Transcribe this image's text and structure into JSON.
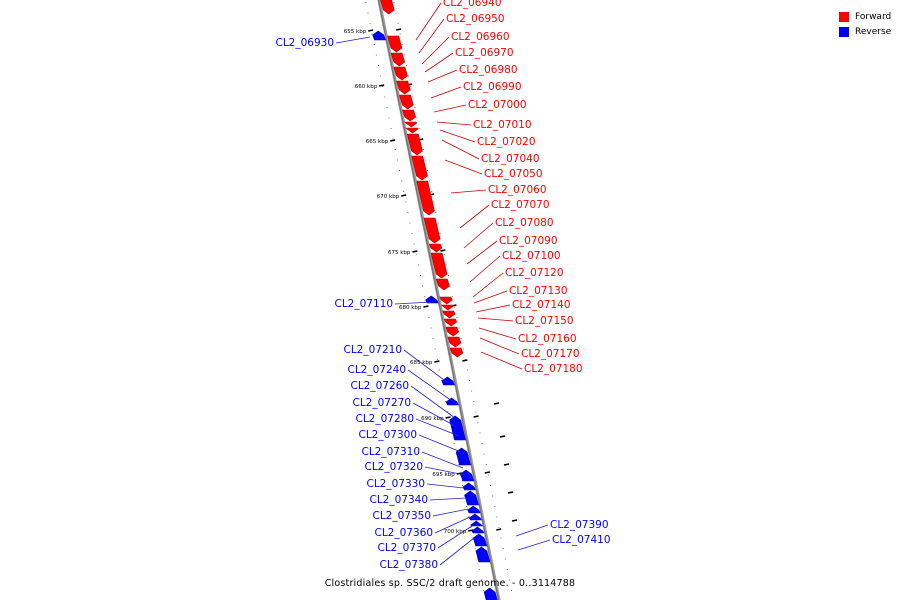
{
  "footer_title": "Clostridiales sp. SSC/2 draft genome. - 0..3114788",
  "legend": [
    {
      "label": "Forward",
      "color": "#ff0000"
    },
    {
      "label": "Reverse",
      "color": "#0000ff"
    }
  ],
  "colors": {
    "forward": "#ff0000",
    "reverse": "#0000ff",
    "axis": "#808080",
    "leader_forward": "#cc0000",
    "leader_reverse": "#2222cc"
  },
  "scale_labels": [
    "655 kbp",
    "660 kbp",
    "665 kbp",
    "670 kbp",
    "675 kbp",
    "680 kbp",
    "685 kbp",
    "690 kbp",
    "695 kbp",
    "700 kbp"
  ],
  "genes": [
    {
      "name": "CL2_06930",
      "strand": "reverse"
    },
    {
      "name": "CL2_06940",
      "strand": "forward"
    },
    {
      "name": "CL2_06950",
      "strand": "forward"
    },
    {
      "name": "CL2_06960",
      "strand": "forward"
    },
    {
      "name": "CL2_06970",
      "strand": "forward"
    },
    {
      "name": "CL2_06980",
      "strand": "forward"
    },
    {
      "name": "CL2_06990",
      "strand": "forward"
    },
    {
      "name": "CL2_07000",
      "strand": "forward"
    },
    {
      "name": "CL2_07010",
      "strand": "forward"
    },
    {
      "name": "CL2_07020",
      "strand": "forward"
    },
    {
      "name": "CL2_07040",
      "strand": "forward"
    },
    {
      "name": "CL2_07050",
      "strand": "forward"
    },
    {
      "name": "CL2_07060",
      "strand": "forward"
    },
    {
      "name": "CL2_07070",
      "strand": "forward"
    },
    {
      "name": "CL2_07080",
      "strand": "forward"
    },
    {
      "name": "CL2_07090",
      "strand": "forward"
    },
    {
      "name": "CL2_07100",
      "strand": "forward"
    },
    {
      "name": "CL2_07110",
      "strand": "reverse"
    },
    {
      "name": "CL2_07120",
      "strand": "forward"
    },
    {
      "name": "CL2_07130",
      "strand": "forward"
    },
    {
      "name": "CL2_07140",
      "strand": "forward"
    },
    {
      "name": "CL2_07150",
      "strand": "forward"
    },
    {
      "name": "CL2_07160",
      "strand": "forward"
    },
    {
      "name": "CL2_07170",
      "strand": "forward"
    },
    {
      "name": "CL2_07180",
      "strand": "forward"
    },
    {
      "name": "CL2_07210",
      "strand": "reverse"
    },
    {
      "name": "CL2_07240",
      "strand": "reverse"
    },
    {
      "name": "CL2_07260",
      "strand": "reverse"
    },
    {
      "name": "CL2_07270",
      "strand": "reverse"
    },
    {
      "name": "CL2_07280",
      "strand": "reverse"
    },
    {
      "name": "CL2_07300",
      "strand": "reverse"
    },
    {
      "name": "CL2_07310",
      "strand": "reverse"
    },
    {
      "name": "CL2_07320",
      "strand": "reverse"
    },
    {
      "name": "CL2_07330",
      "strand": "reverse"
    },
    {
      "name": "CL2_07340",
      "strand": "reverse"
    },
    {
      "name": "CL2_07350",
      "strand": "reverse"
    },
    {
      "name": "CL2_07360",
      "strand": "reverse"
    },
    {
      "name": "CL2_07370",
      "strand": "reverse"
    },
    {
      "name": "CL2_07380",
      "strand": "reverse"
    },
    {
      "name": "CL2_07390",
      "strand": "reverse"
    },
    {
      "name": "CL2_07410",
      "strand": "reverse"
    }
  ]
}
